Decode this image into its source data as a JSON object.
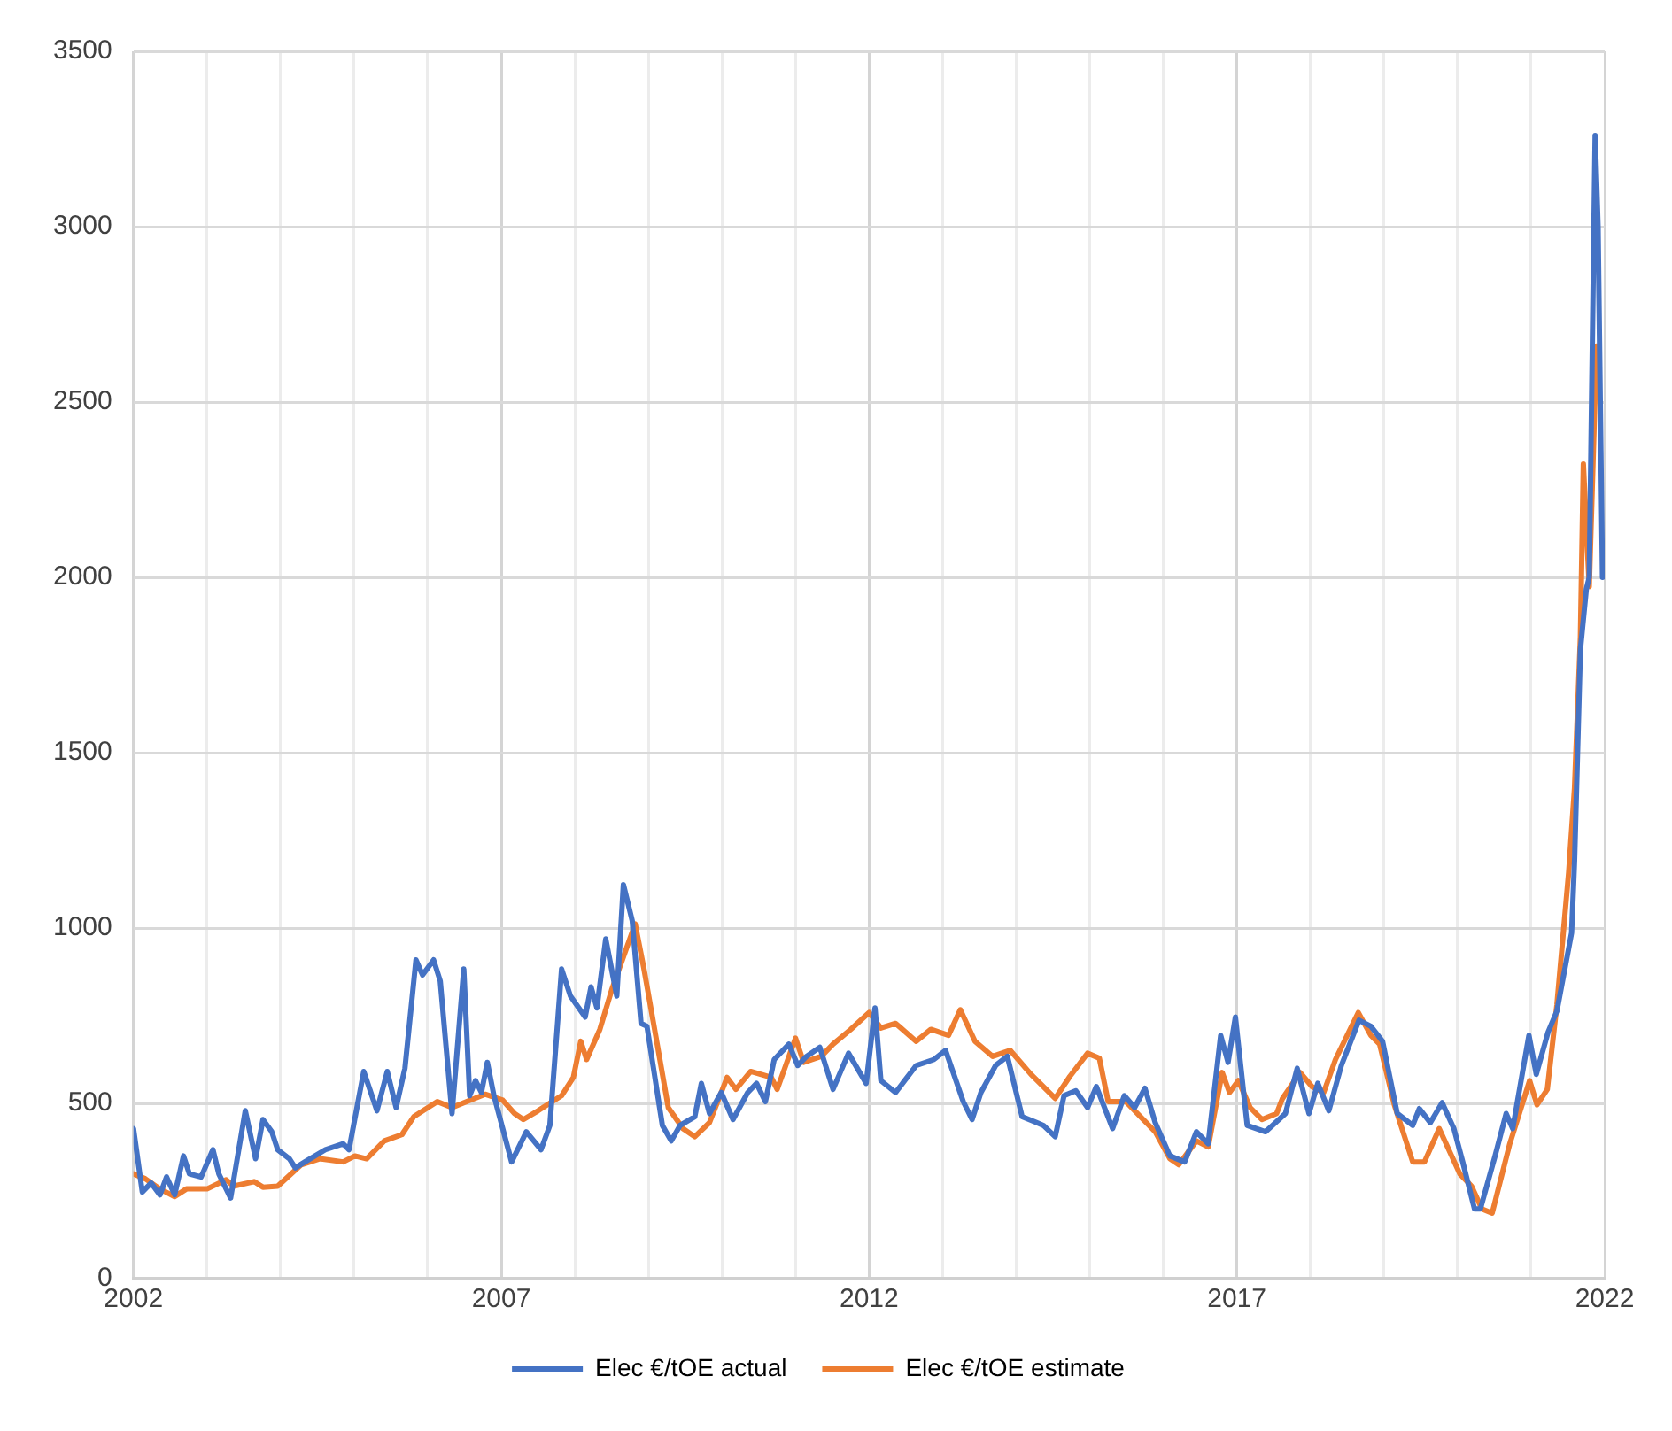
{
  "chart_data": {
    "type": "line",
    "legend": "bottom",
    "grid": true,
    "marker": "none",
    "line_style": "solid",
    "xlim": [
      2002,
      2022
    ],
    "xticks": [
      2002,
      {
        "value": 2003,
        "label": null
      },
      {
        "value": 2004,
        "label": null
      },
      {
        "value": 2005,
        "label": null
      },
      {
        "value": 2006,
        "label": null
      },
      2007,
      {
        "value": 2008,
        "label": null
      },
      {
        "value": 2009,
        "label": null
      },
      {
        "value": 2010,
        "label": null
      },
      {
        "value": 2011,
        "label": null
      },
      2012,
      {
        "value": 2013,
        "label": null
      },
      {
        "value": 2014,
        "label": null
      },
      {
        "value": 2015,
        "label": null
      },
      {
        "value": 2016,
        "label": null
      },
      2017,
      {
        "value": 2018,
        "label": null
      },
      {
        "value": 2019,
        "label": null
      },
      {
        "value": 2020,
        "label": null
      },
      {
        "value": 2021,
        "label": null
      },
      2022
    ],
    "ylim": [
      0,
      3500
    ],
    "yticks": [
      0,
      500,
      1000,
      1500,
      2000,
      2500,
      3000,
      3500
    ],
    "series": [
      {
        "name": "Elec €/tOE actual",
        "color": "#4472c4",
        "x": [
          2002.0,
          2002.12,
          2002.24,
          2002.36,
          2002.45,
          2002.56,
          2002.68,
          2002.76,
          2002.92,
          2003.08,
          2003.16,
          2003.32,
          2003.52,
          2003.66,
          2003.76,
          2003.88,
          2003.96,
          2004.12,
          2004.2,
          2004.33,
          2004.61,
          2004.85,
          2004.93,
          2005.13,
          2005.31,
          2005.45,
          2005.57,
          2005.69,
          2005.84,
          2005.93,
          2006.08,
          2006.17,
          2006.33,
          2006.49,
          2006.57,
          2006.65,
          2006.73,
          2006.81,
          2006.9,
          2007.14,
          2007.34,
          2007.54,
          2007.66,
          2007.82,
          2007.94,
          2008.14,
          2008.22,
          2008.3,
          2008.42,
          2008.57,
          2008.66,
          2008.78,
          2008.9,
          2008.98,
          2009.19,
          2009.31,
          2009.43,
          2009.63,
          2009.72,
          2009.83,
          2009.99,
          2010.15,
          2010.35,
          2010.47,
          2010.59,
          2010.71,
          2010.91,
          2011.03,
          2011.15,
          2011.33,
          2011.51,
          2011.72,
          2011.96,
          2012.08,
          2012.16,
          2012.36,
          2012.64,
          2012.88,
          2013.04,
          2013.28,
          2013.4,
          2013.52,
          2013.72,
          2013.88,
          2014.08,
          2014.28,
          2014.37,
          2014.53,
          2014.65,
          2014.81,
          2014.97,
          2015.09,
          2015.31,
          2015.47,
          2015.61,
          2015.75,
          2015.89,
          2016.09,
          2016.29,
          2016.45,
          2016.61,
          2016.78,
          2016.88,
          2016.98,
          2017.14,
          2017.39,
          2017.66,
          2017.82,
          2017.98,
          2018.1,
          2018.25,
          2018.42,
          2018.66,
          2018.82,
          2018.98,
          2019.18,
          2019.39,
          2019.48,
          2019.63,
          2019.79,
          2019.95,
          2020.07,
          2020.23,
          2020.31,
          2020.51,
          2020.66,
          2020.75,
          2020.97,
          2021.07,
          2021.23,
          2021.35,
          2021.55,
          2021.59,
          2021.67,
          2021.75,
          2021.79,
          2021.87,
          2021.91,
          2021.97
        ],
        "values": [
          428,
          247,
          273,
          239,
          290,
          239,
          350,
          299,
          290,
          368,
          299,
          230,
          479,
          342,
          454,
          419,
          368,
          342,
          316,
          333,
          368,
          385,
          368,
          591,
          479,
          591,
          488,
          600,
          909,
          866,
          909,
          849,
          471,
          883,
          522,
          565,
          531,
          617,
          522,
          333,
          419,
          368,
          437,
          883,
          806,
          746,
          832,
          772,
          969,
          806,
          1124,
          1021,
          728,
          720,
          437,
          393,
          437,
          462,
          557,
          471,
          531,
          454,
          531,
          557,
          505,
          625,
          669,
          608,
          634,
          660,
          540,
          643,
          557,
          772,
          565,
          531,
          608,
          625,
          651,
          505,
          454,
          531,
          608,
          634,
          462,
          445,
          437,
          405,
          522,
          536,
          488,
          548,
          428,
          522,
          488,
          543,
          445,
          350,
          333,
          419,
          385,
          694,
          617,
          746,
          437,
          419,
          471,
          600,
          471,
          557,
          479,
          608,
          737,
          720,
          677,
          471,
          437,
          485,
          445,
          502,
          428,
          333,
          199,
          199,
          350,
          471,
          428,
          694,
          583,
          703,
          763,
          986,
          1190,
          1794,
          1966,
          2000,
          3260,
          3000,
          2000
        ]
      },
      {
        "name": "Elec €/tOE estimate",
        "color": "#ed7d31",
        "x": [
          2002.0,
          2002.16,
          2002.36,
          2002.56,
          2002.72,
          2003.0,
          2003.26,
          2003.36,
          2003.64,
          2003.76,
          2003.96,
          2004.28,
          2004.53,
          2004.85,
          2005.01,
          2005.17,
          2005.41,
          2005.65,
          2005.81,
          2006.13,
          2006.33,
          2006.53,
          2006.78,
          2007.02,
          2007.18,
          2007.3,
          2007.5,
          2007.82,
          2007.98,
          2008.08,
          2008.16,
          2008.34,
          2008.5,
          2008.82,
          2008.94,
          2009.07,
          2009.27,
          2009.47,
          2009.63,
          2009.83,
          2010.07,
          2010.19,
          2010.39,
          2010.67,
          2010.75,
          2011.0,
          2011.11,
          2011.35,
          2011.51,
          2011.75,
          2012.0,
          2012.16,
          2012.36,
          2012.64,
          2012.84,
          2013.08,
          2013.24,
          2013.44,
          2013.68,
          2013.92,
          2014.2,
          2014.53,
          2014.73,
          2014.97,
          2015.13,
          2015.25,
          2015.49,
          2015.69,
          2015.89,
          2016.09,
          2016.21,
          2016.45,
          2016.61,
          2016.8,
          2016.9,
          2017.02,
          2017.18,
          2017.34,
          2017.54,
          2017.62,
          2017.86,
          2018.02,
          2018.18,
          2018.34,
          2018.65,
          2018.82,
          2018.94,
          2019.14,
          2019.39,
          2019.55,
          2019.75,
          2020.03,
          2020.19,
          2020.33,
          2020.47,
          2020.71,
          2020.98,
          2021.08,
          2021.22,
          2021.35,
          2021.51,
          2021.59,
          2021.67,
          2021.71,
          2021.79,
          2021.89
        ],
        "values": [
          299,
          285,
          256,
          234,
          256,
          256,
          282,
          264,
          277,
          261,
          264,
          325,
          342,
          333,
          350,
          342,
          393,
          411,
          462,
          505,
          488,
          505,
          526,
          509,
          471,
          454,
          479,
          522,
          574,
          677,
          625,
          711,
          823,
          1012,
          883,
          728,
          488,
          428,
          405,
          445,
          574,
          540,
          591,
          574,
          540,
          686,
          617,
          634,
          669,
          711,
          759,
          715,
          728,
          677,
          711,
          694,
          767,
          677,
          634,
          651,
          583,
          514,
          577,
          643,
          629,
          505,
          505,
          462,
          419,
          342,
          325,
          393,
          376,
          588,
          531,
          565,
          488,
          454,
          471,
          514,
          588,
          548,
          531,
          625,
          759,
          694,
          669,
          496,
          333,
          333,
          428,
          299,
          264,
          199,
          187,
          385,
          565,
          496,
          540,
          780,
          1158,
          1400,
          1830,
          2323,
          1974,
          2660
        ]
      }
    ]
  }
}
